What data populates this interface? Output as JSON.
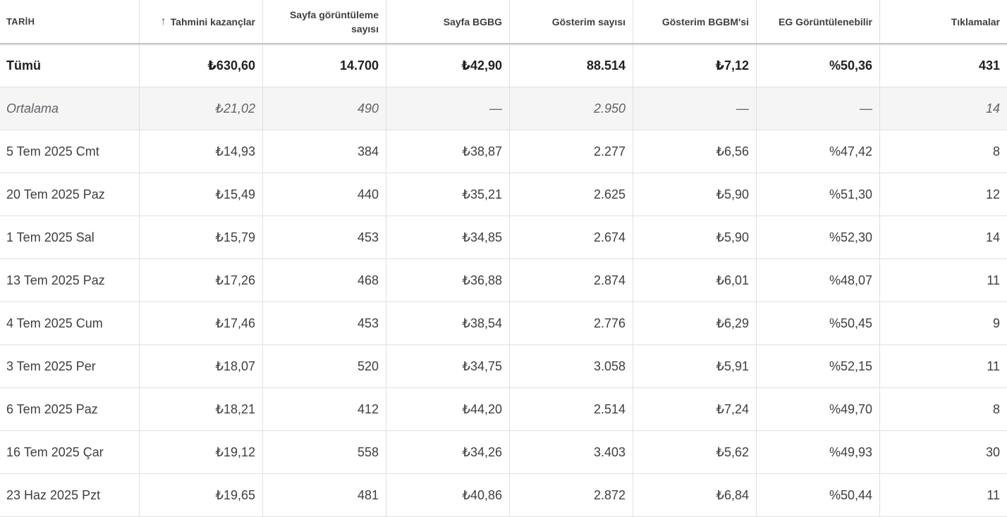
{
  "columns": {
    "date": "TARİH",
    "earnings": "Tahmini kazançlar",
    "pageviews_line1": "Sayfa görüntüleme",
    "pageviews_line2": "sayısı",
    "page_rpm": "Sayfa BGBG",
    "impressions": "Gösterim sayısı",
    "impression_rpm": "Gösterim BGBM'si",
    "active_view": "EG Görüntülenebilir",
    "clicks": "Tıklamalar"
  },
  "sort": {
    "column": "earnings",
    "direction": "ascending",
    "icon": "arrow-up-icon",
    "glyph": "↑"
  },
  "total": {
    "label": "Tümü",
    "earnings": "₺630,60",
    "pageviews": "14.700",
    "page_rpm": "₺42,90",
    "impressions": "88.514",
    "impression_rpm": "₺7,12",
    "active_view": "%50,36",
    "clicks": "431"
  },
  "average": {
    "label": "Ortalama",
    "earnings": "₺21,02",
    "pageviews": "490",
    "page_rpm": "—",
    "impressions": "2.950",
    "impression_rpm": "—",
    "active_view": "—",
    "clicks": "14"
  },
  "rows": [
    {
      "date": "5 Tem 2025 Cmt",
      "earnings": "₺14,93",
      "pageviews": "384",
      "page_rpm": "₺38,87",
      "impressions": "2.277",
      "impression_rpm": "₺6,56",
      "active_view": "%47,42",
      "clicks": "8"
    },
    {
      "date": "20 Tem 2025 Paz",
      "earnings": "₺15,49",
      "pageviews": "440",
      "page_rpm": "₺35,21",
      "impressions": "2.625",
      "impression_rpm": "₺5,90",
      "active_view": "%51,30",
      "clicks": "12"
    },
    {
      "date": "1 Tem 2025 Sal",
      "earnings": "₺15,79",
      "pageviews": "453",
      "page_rpm": "₺34,85",
      "impressions": "2.674",
      "impression_rpm": "₺5,90",
      "active_view": "%52,30",
      "clicks": "14"
    },
    {
      "date": "13 Tem 2025 Paz",
      "earnings": "₺17,26",
      "pageviews": "468",
      "page_rpm": "₺36,88",
      "impressions": "2.874",
      "impression_rpm": "₺6,01",
      "active_view": "%48,07",
      "clicks": "11"
    },
    {
      "date": "4 Tem 2025 Cum",
      "earnings": "₺17,46",
      "pageviews": "453",
      "page_rpm": "₺38,54",
      "impressions": "2.776",
      "impression_rpm": "₺6,29",
      "active_view": "%50,45",
      "clicks": "9"
    },
    {
      "date": "3 Tem 2025 Per",
      "earnings": "₺18,07",
      "pageviews": "520",
      "page_rpm": "₺34,75",
      "impressions": "3.058",
      "impression_rpm": "₺5,91",
      "active_view": "%52,15",
      "clicks": "11"
    },
    {
      "date": "6 Tem 2025 Paz",
      "earnings": "₺18,21",
      "pageviews": "412",
      "page_rpm": "₺44,20",
      "impressions": "2.514",
      "impression_rpm": "₺7,24",
      "active_view": "%49,70",
      "clicks": "8"
    },
    {
      "date": "16 Tem 2025 Çar",
      "earnings": "₺19,12",
      "pageviews": "558",
      "page_rpm": "₺34,26",
      "impressions": "3.403",
      "impression_rpm": "₺5,62",
      "active_view": "%49,93",
      "clicks": "30"
    },
    {
      "date": "23 Haz 2025 Pzt",
      "earnings": "₺19,65",
      "pageviews": "481",
      "page_rpm": "₺40,86",
      "impressions": "2.872",
      "impression_rpm": "₺6,84",
      "active_view": "%50,44",
      "clicks": "11"
    }
  ]
}
